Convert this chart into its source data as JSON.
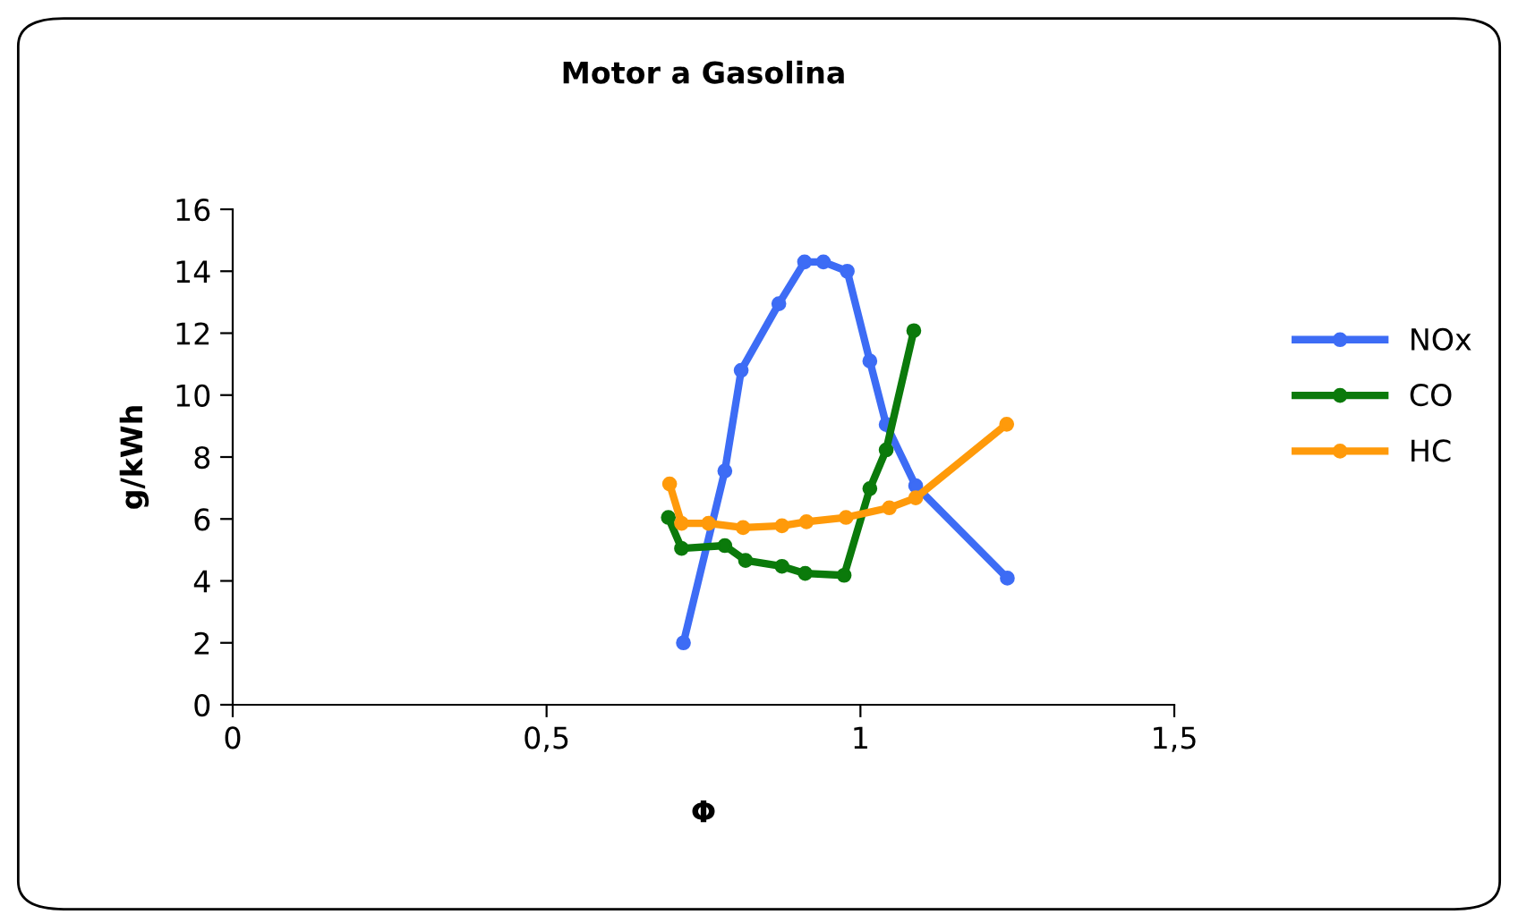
{
  "chart_data": {
    "type": "line",
    "title": "Motor a Gasolina",
    "xlabel": "Φ",
    "ylabel": "g/kWh",
    "xlim": [
      0,
      1.5
    ],
    "xticks": [
      0,
      {
        "value": 0.5,
        "label": "0,5"
      },
      1,
      {
        "value": 1.5,
        "label": "1,5"
      }
    ],
    "ylim": [
      0,
      16
    ],
    "yticks": [
      0,
      2,
      4,
      6,
      8,
      10,
      12,
      14,
      16
    ],
    "grid": false,
    "legend": "right",
    "marker": "circle",
    "line_style": "solid",
    "series": [
      {
        "name": "NOx",
        "color": "#3d6cf5",
        "x": [
          0.718,
          0.784,
          0.81,
          0.87,
          0.911,
          0.941,
          0.979,
          1.015,
          1.041,
          1.088,
          1.234
        ],
        "values": [
          2.0,
          7.55,
          10.8,
          12.95,
          14.3,
          14.3,
          14.0,
          11.1,
          9.05,
          7.07,
          4.09
        ]
      },
      {
        "name": "CO",
        "color": "#0b7a0b",
        "x": [
          0.694,
          0.715,
          0.784,
          0.817,
          0.875,
          0.912,
          0.974,
          1.015,
          1.041,
          1.085
        ],
        "values": [
          6.05,
          5.05,
          5.14,
          4.66,
          4.47,
          4.24,
          4.18,
          6.98,
          8.23,
          12.08
        ]
      },
      {
        "name": "HC",
        "color": "#ff9a0a",
        "x": [
          0.696,
          0.715,
          0.758,
          0.813,
          0.875,
          0.914,
          0.977,
          1.046,
          1.088,
          1.233
        ],
        "values": [
          7.13,
          5.86,
          5.86,
          5.72,
          5.78,
          5.91,
          6.05,
          6.36,
          6.68,
          9.06
        ]
      }
    ]
  }
}
